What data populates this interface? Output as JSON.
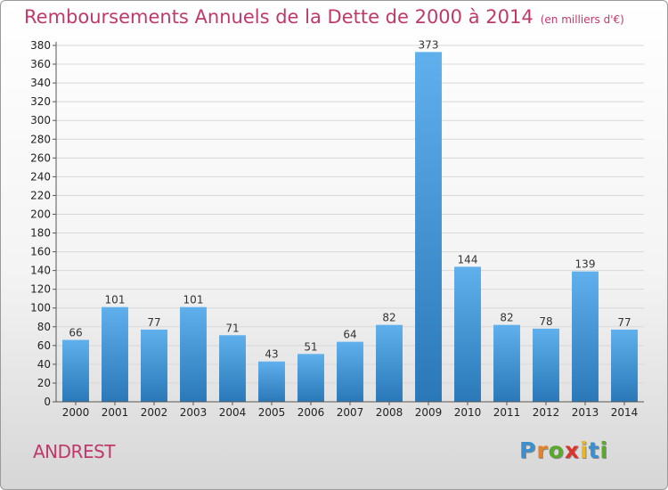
{
  "title": "Remboursements Annuels de la Dette de 2000 à 2014",
  "unit": "(en milliers d'€)",
  "commune": "ANDREST",
  "brand": {
    "letters": [
      "P",
      "r",
      "o",
      "x",
      "i",
      "t",
      "i"
    ],
    "colors": [
      "#3a8fd0",
      "#e0832a",
      "#5aaa2a",
      "#d9352f",
      "#e8b81e",
      "#3a8fd0",
      "#5aaa2a"
    ]
  },
  "colors": {
    "bar_top": "#5fb0ec",
    "bar_bottom": "#2a78b8",
    "title": "#c0396b",
    "grid": "#d8d8d8"
  },
  "chart_data": {
    "type": "bar",
    "categories": [
      "2000",
      "2001",
      "2002",
      "2003",
      "2004",
      "2005",
      "2006",
      "2007",
      "2008",
      "2009",
      "2010",
      "2011",
      "2012",
      "2013",
      "2014"
    ],
    "values": [
      66,
      101,
      77,
      101,
      71,
      43,
      51,
      64,
      82,
      373,
      144,
      82,
      78,
      139,
      77
    ],
    "ylim": [
      0,
      380
    ],
    "yticks": [
      0,
      20,
      40,
      60,
      80,
      100,
      120,
      140,
      160,
      180,
      200,
      220,
      240,
      260,
      280,
      300,
      320,
      340,
      360,
      380
    ],
    "grid": true,
    "data_labels": true
  }
}
